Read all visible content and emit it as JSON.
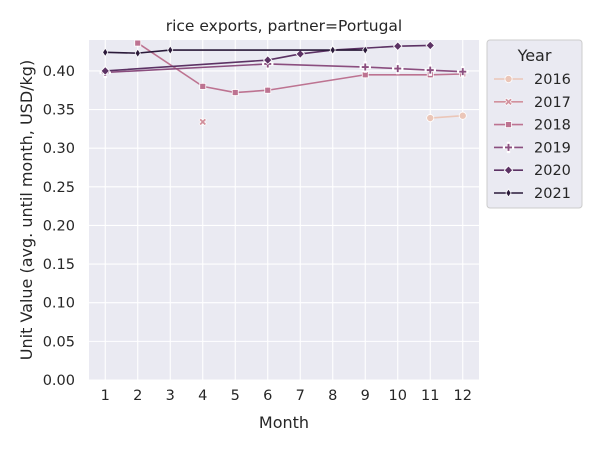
{
  "chart_data": {
    "type": "line",
    "title": "rice exports, partner=Portugal",
    "xlabel": "Month",
    "ylabel": "Unit Value (avg. until month, USD/kg)",
    "x_ticks": [
      "1",
      "2",
      "3",
      "4",
      "5",
      "6",
      "7",
      "8",
      "9",
      "10",
      "11",
      "12"
    ],
    "y_ticks": [
      "0.00",
      "0.05",
      "0.10",
      "0.15",
      "0.20",
      "0.25",
      "0.30",
      "0.35",
      "0.40"
    ],
    "xlim": [
      0.5,
      12.5
    ],
    "ylim": [
      0,
      0.44
    ],
    "grid": true,
    "legend": {
      "title": "Year",
      "placement": "outside-right"
    },
    "series": [
      {
        "name": "2016",
        "color": "#ebc6b8",
        "marker": "circle",
        "points": [
          [
            11,
            0.339
          ],
          [
            12,
            0.342
          ]
        ]
      },
      {
        "name": "2017",
        "color": "#d2919d",
        "marker": "x",
        "points": [
          [
            4,
            0.334
          ]
        ]
      },
      {
        "name": "2018",
        "color": "#bd7391",
        "marker": "square",
        "points": [
          [
            2,
            0.436
          ],
          [
            4,
            0.38
          ],
          [
            5,
            0.372
          ],
          [
            6,
            0.375
          ],
          [
            9,
            0.395
          ],
          [
            11,
            0.395
          ],
          [
            12,
            0.396
          ]
        ]
      },
      {
        "name": "2019",
        "color": "#8b4e7f",
        "marker": "plus",
        "points": [
          [
            1,
            0.398
          ],
          [
            6,
            0.409
          ],
          [
            9,
            0.405
          ],
          [
            10,
            0.403
          ],
          [
            11,
            0.401
          ],
          [
            12,
            0.399
          ]
        ]
      },
      {
        "name": "2020",
        "color": "#5c3264",
        "marker": "diamond",
        "points": [
          [
            1,
            0.4
          ],
          [
            6,
            0.414
          ],
          [
            7,
            0.422
          ],
          [
            8,
            0.427
          ],
          [
            10,
            0.432
          ],
          [
            11,
            0.433
          ]
        ]
      },
      {
        "name": "2021",
        "color": "#2b1a3a",
        "marker": "thin_diamond",
        "points": [
          [
            1,
            0.424
          ],
          [
            2,
            0.423
          ],
          [
            3,
            0.427
          ],
          [
            8,
            0.427
          ],
          [
            9,
            0.427
          ]
        ]
      }
    ]
  }
}
